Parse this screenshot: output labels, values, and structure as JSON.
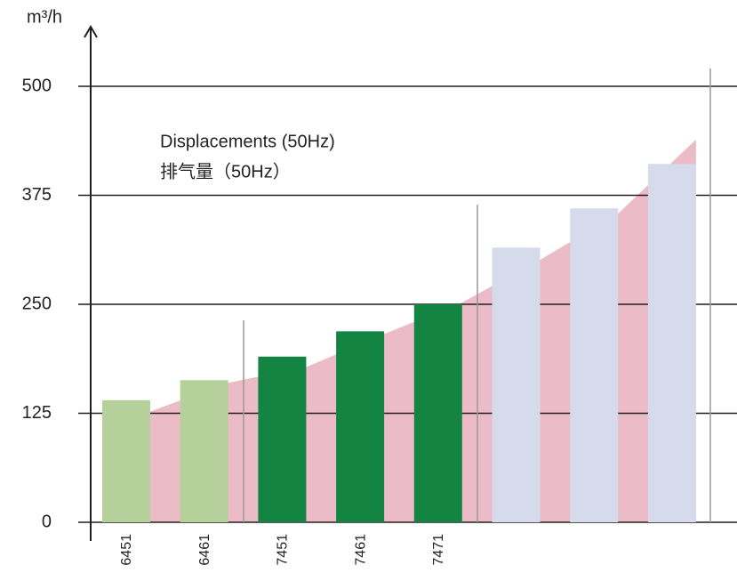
{
  "chart_data": {
    "type": "bar",
    "title": "Displacements (50Hz)",
    "subtitle": "排气量（50Hz）",
    "y_label": "m³/h",
    "categories": [
      "6451",
      "6461",
      "7451",
      "7461",
      "7471",
      null,
      null,
      null
    ],
    "values": [
      140,
      163,
      190,
      219,
      250,
      315,
      360,
      411
    ],
    "colors": [
      "#b5d09b",
      "#b5d09b",
      "#138441",
      "#138441",
      "#138441",
      "#d5dbea",
      "#d5dbea",
      "#d5dbea"
    ],
    "area": {
      "color": "#ebbcc8",
      "values": [
        127,
        160,
        178,
        216,
        252,
        301,
        354,
        439
      ]
    },
    "ylim": [
      0,
      500
    ],
    "yticks": [
      0,
      125,
      250,
      375,
      500
    ],
    "grid": true
  }
}
